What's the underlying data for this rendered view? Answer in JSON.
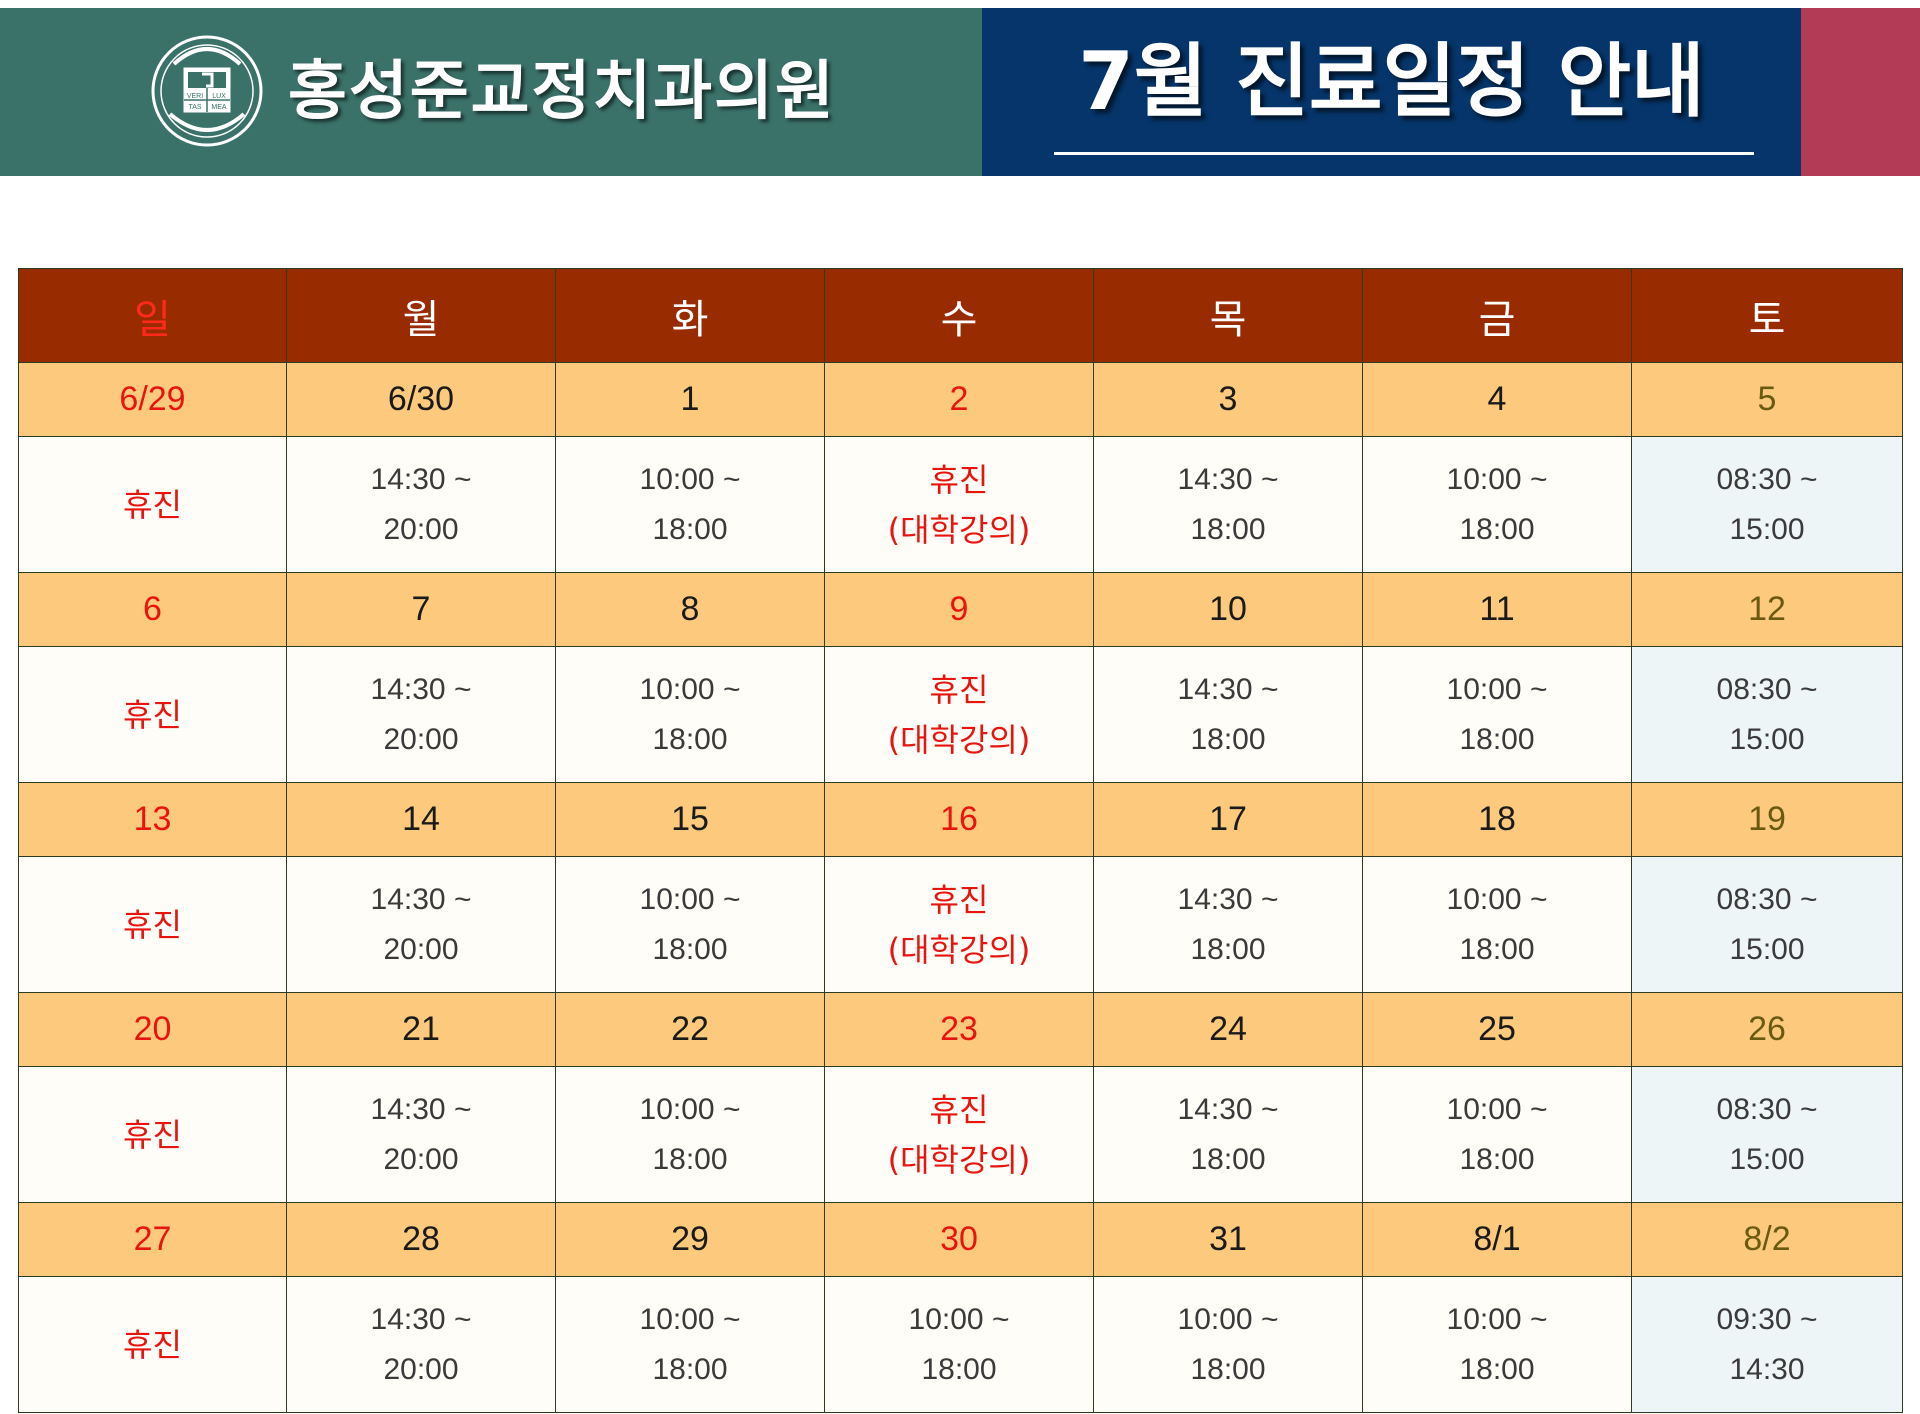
{
  "header": {
    "clinic_name": "홍성준교정치과의원",
    "title": "7월 진료일정 안내",
    "logo_text": [
      "VERI",
      "LUX",
      "TAS",
      "MEA"
    ],
    "colors": {
      "left": "#3a7169",
      "middle": "#05356a",
      "right": "#b43b56"
    }
  },
  "weekdays": [
    "일",
    "월",
    "화",
    "수",
    "목",
    "금",
    "토"
  ],
  "weeks": [
    {
      "dates": [
        "6/29",
        "6/30",
        "1",
        "2",
        "3",
        "4",
        "5"
      ],
      "hours": [
        [
          "휴진",
          ""
        ],
        [
          "14:30 ~",
          "20:00"
        ],
        [
          "10:00 ~",
          "18:00"
        ],
        [
          "휴진",
          "(대학강의)"
        ],
        [
          "14:30 ~",
          "18:00"
        ],
        [
          "10:00 ~",
          "18:00"
        ],
        [
          "08:30 ~",
          "15:00"
        ]
      ]
    },
    {
      "dates": [
        "6",
        "7",
        "8",
        "9",
        "10",
        "11",
        "12"
      ],
      "hours": [
        [
          "휴진",
          ""
        ],
        [
          "14:30 ~",
          "20:00"
        ],
        [
          "10:00 ~",
          "18:00"
        ],
        [
          "휴진",
          "(대학강의)"
        ],
        [
          "14:30 ~",
          "18:00"
        ],
        [
          "10:00 ~",
          "18:00"
        ],
        [
          "08:30 ~",
          "15:00"
        ]
      ]
    },
    {
      "dates": [
        "13",
        "14",
        "15",
        "16",
        "17",
        "18",
        "19"
      ],
      "hours": [
        [
          "휴진",
          ""
        ],
        [
          "14:30 ~",
          "20:00"
        ],
        [
          "10:00 ~",
          "18:00"
        ],
        [
          "휴진",
          "(대학강의)"
        ],
        [
          "14:30 ~",
          "18:00"
        ],
        [
          "10:00 ~",
          "18:00"
        ],
        [
          "08:30 ~",
          "15:00"
        ]
      ]
    },
    {
      "dates": [
        "20",
        "21",
        "22",
        "23",
        "24",
        "25",
        "26"
      ],
      "hours": [
        [
          "휴진",
          ""
        ],
        [
          "14:30 ~",
          "20:00"
        ],
        [
          "10:00 ~",
          "18:00"
        ],
        [
          "휴진",
          "(대학강의)"
        ],
        [
          "14:30 ~",
          "18:00"
        ],
        [
          "10:00 ~",
          "18:00"
        ],
        [
          "08:30 ~",
          "15:00"
        ]
      ]
    },
    {
      "dates": [
        "27",
        "28",
        "29",
        "30",
        "31",
        "8/1",
        "8/2"
      ],
      "hours": [
        [
          "휴진",
          ""
        ],
        [
          "14:30 ~",
          "20:00"
        ],
        [
          "10:00 ~",
          "18:00"
        ],
        [
          "10:00 ~",
          "18:00"
        ],
        [
          "10:00 ~",
          "18:00"
        ],
        [
          "10:00 ~",
          "18:00"
        ],
        [
          "09:30 ~",
          "14:30"
        ]
      ]
    }
  ]
}
